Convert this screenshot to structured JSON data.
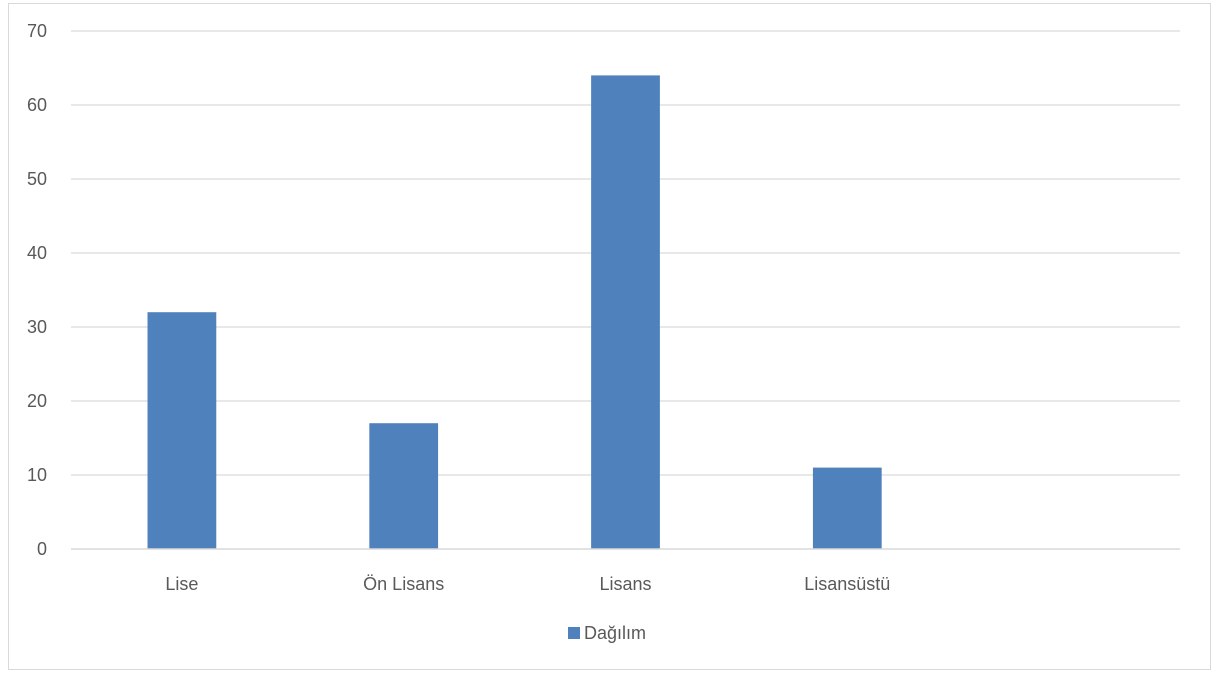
{
  "chart_data": {
    "type": "bar",
    "title": "",
    "xlabel": "",
    "ylabel": "",
    "categories": [
      "Lise",
      "Ön Lisans",
      "Lisans",
      "Lisansüstü",
      ""
    ],
    "series": [
      {
        "name": "Dağılım",
        "values": [
          32,
          17,
          64,
          11,
          null
        ],
        "color": "#4f81bd"
      }
    ],
    "ylim": [
      0,
      70
    ],
    "yticks": [
      0,
      10,
      20,
      30,
      40,
      50,
      60,
      70
    ],
    "grid": true,
    "legend": "bottom"
  }
}
